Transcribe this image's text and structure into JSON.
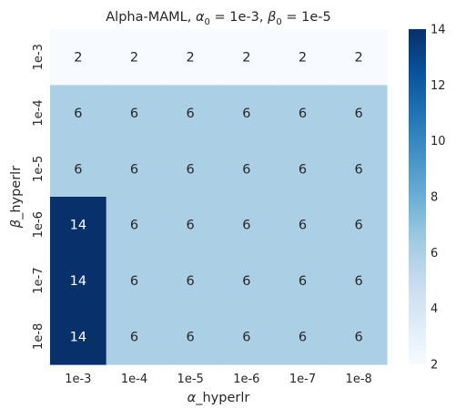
{
  "chart_data": {
    "type": "heatmap",
    "title": {
      "prefix": "Alpha-MAML, ",
      "alpha_symbol": "α",
      "alpha_sub": "0",
      "alpha_eq": " = 1e-3, ",
      "beta_symbol": "β",
      "beta_sub": "0",
      "beta_eq": " = 1e-5"
    },
    "xlabel": {
      "symbol": "α",
      "text": "_hyperlr"
    },
    "ylabel": {
      "symbol": "β",
      "text": "_hyperlr"
    },
    "x_categories": [
      "1e-3",
      "1e-4",
      "1e-5",
      "1e-6",
      "1e-7",
      "1e-8"
    ],
    "y_categories": [
      "1e-3",
      "1e-4",
      "1e-5",
      "1e-6",
      "1e-7",
      "1e-8"
    ],
    "values": [
      [
        2,
        2,
        2,
        2,
        2,
        2
      ],
      [
        6,
        6,
        6,
        6,
        6,
        6
      ],
      [
        6,
        6,
        6,
        6,
        6,
        6
      ],
      [
        14,
        6,
        6,
        6,
        6,
        6
      ],
      [
        14,
        6,
        6,
        6,
        6,
        6
      ],
      [
        14,
        6,
        6,
        6,
        6,
        6
      ]
    ],
    "colorbar": {
      "vmin": 2,
      "vmax": 14,
      "ticks": [
        "2",
        "4",
        "6",
        "8",
        "10",
        "12",
        "14"
      ],
      "colormap": "Blues",
      "colors": [
        "#f7fbff",
        "#deebf7",
        "#c6dbef",
        "#9ecae1",
        "#6baed6",
        "#4292c6",
        "#2171b5",
        "#08519c",
        "#08306b"
      ]
    },
    "annotation_colors": {
      "dark_text": "#262626",
      "light_text": "#ffffff"
    }
  }
}
